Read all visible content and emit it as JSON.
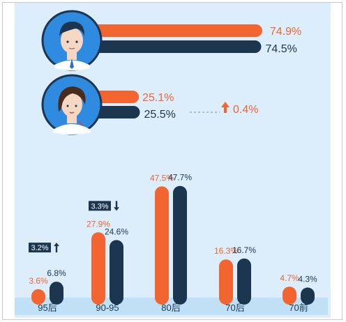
{
  "colors": {
    "orange": "#f26430",
    "navy": "#1c3650",
    "panel": "#dcedfb",
    "axis_band": "#bfe0f5",
    "avatar_bg": "#2e8be0"
  },
  "gender": {
    "male": {
      "icon": "male-avatar-icon",
      "orange_pct": 74.9,
      "navy_pct": 74.5,
      "orange_label": "74.9%",
      "navy_label": "74.5%"
    },
    "female": {
      "icon": "female-avatar-icon",
      "orange_pct": 25.1,
      "navy_pct": 25.5,
      "orange_label": "25.1%",
      "navy_label": "25.5%"
    },
    "change_label": "0.4%",
    "change_icon": "arrow-up-icon"
  },
  "chart_data": {
    "type": "bar",
    "categories": [
      "95后",
      "90-95",
      "80后",
      "70后",
      "70前"
    ],
    "series": [
      {
        "color": "#f26430",
        "values": [
          3.6,
          27.9,
          47.5,
          16.3,
          4.7
        ],
        "labels": [
          "3.6%",
          "27.9%",
          "47.5%",
          "16.3%",
          "4.7%"
        ]
      },
      {
        "color": "#1c3650",
        "values": [
          6.8,
          24.6,
          47.7,
          16.7,
          4.3
        ],
        "labels": [
          "6.8%",
          "24.6%",
          "47.7%",
          "16.7%",
          "4.3%"
        ]
      }
    ],
    "ylim": [
      0,
      50
    ],
    "annotations": [
      {
        "category": "95后",
        "text": "3.2%",
        "direction": "up"
      },
      {
        "category": "90-95",
        "text": "3.3%",
        "direction": "down"
      }
    ]
  }
}
